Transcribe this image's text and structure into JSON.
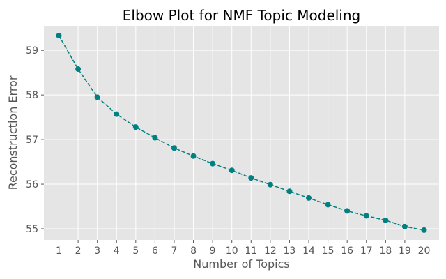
{
  "chart_data": {
    "type": "line",
    "title": "Elbow Plot for NMF Topic Modeling",
    "xlabel": "Number of Topics",
    "ylabel": "Reconstruction Error",
    "x": [
      1,
      2,
      3,
      4,
      5,
      6,
      7,
      8,
      9,
      10,
      11,
      12,
      13,
      14,
      15,
      16,
      17,
      18,
      19,
      20
    ],
    "series": [
      {
        "values": [
          59.33,
          58.58,
          57.95,
          57.57,
          57.28,
          57.04,
          56.81,
          56.63,
          56.46,
          56.31,
          56.14,
          55.99,
          55.84,
          55.69,
          55.54,
          55.4,
          55.29,
          55.19,
          55.05,
          54.97
        ],
        "color": "#008080",
        "line_style": "dashed",
        "marker": "circle"
      }
    ],
    "xticks": [
      1,
      2,
      3,
      4,
      5,
      6,
      7,
      8,
      9,
      10,
      11,
      12,
      13,
      14,
      15,
      16,
      17,
      18,
      19,
      20
    ],
    "yticks": [
      55,
      56,
      57,
      58,
      59
    ],
    "xlim": [
      0.22,
      20.78
    ],
    "ylim": [
      54.75,
      59.55
    ],
    "grid": true,
    "style": "ggplot",
    "background_color": "#e5e5e5",
    "grid_color": "#ffffff"
  }
}
